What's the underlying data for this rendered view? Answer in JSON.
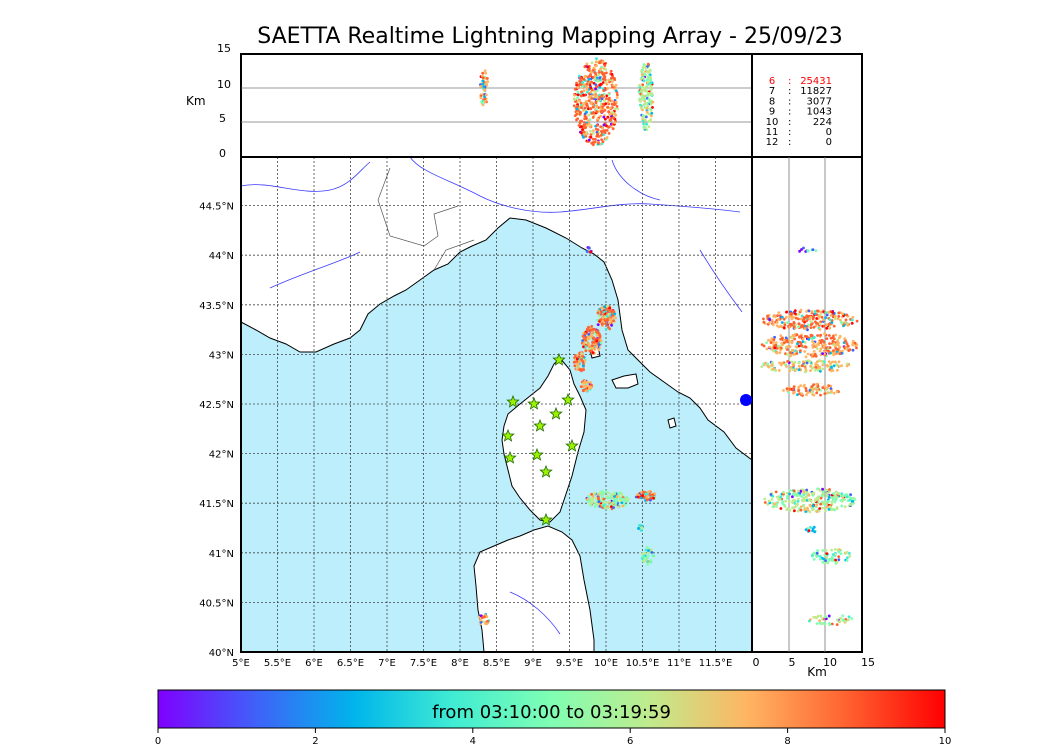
{
  "title": "SAETTA Realtime Lightning Mapping Array - 25/09/23",
  "height_panel": {
    "ylabel": "Km",
    "yticks": [
      "0",
      "5",
      "10",
      "15"
    ]
  },
  "side_panel": {
    "xlabel": "Km",
    "xticks": [
      "0",
      "5",
      "10",
      "15"
    ]
  },
  "map": {
    "lat_ticks": [
      "40°N",
      "40.5°N",
      "41°N",
      "41.5°N",
      "42°N",
      "42.5°N",
      "43°N",
      "43.5°N",
      "44°N",
      "44.5°N"
    ],
    "lon_ticks": [
      "5°E",
      "5.5°E",
      "6°E",
      "6.5°E",
      "7°E",
      "7.5°E",
      "8°E",
      "8.5°E",
      "9°E",
      "9.5°E",
      "10°E",
      "10.5°E",
      "11°E",
      "11.5°E"
    ],
    "sea_color": "#bdeefb",
    "land_color": "#ffffff",
    "river_color": "#3b3bff"
  },
  "station_counts": [
    {
      "stations": "6",
      "count": "25431",
      "highlight": true
    },
    {
      "stations": "7",
      "count": "11827",
      "highlight": false
    },
    {
      "stations": "8",
      "count": "3077",
      "highlight": false
    },
    {
      "stations": "9",
      "count": "1043",
      "highlight": false
    },
    {
      "stations": "10",
      "count": "224",
      "highlight": false
    },
    {
      "stations": "11",
      "count": "0",
      "highlight": false
    },
    {
      "stations": "12",
      "count": "0",
      "highlight": false
    }
  ],
  "colorbar": {
    "label": "from 03:10:00 to 03:19:59",
    "ticks": [
      "0",
      "2",
      "4",
      "6",
      "8",
      "10"
    ],
    "colors": [
      "#7f00ff",
      "#3f62f8",
      "#00b5eb",
      "#40ecd3",
      "#80feb3",
      "#c0eb8d",
      "#ffb462",
      "#ff6230",
      "#ff0000"
    ]
  }
}
